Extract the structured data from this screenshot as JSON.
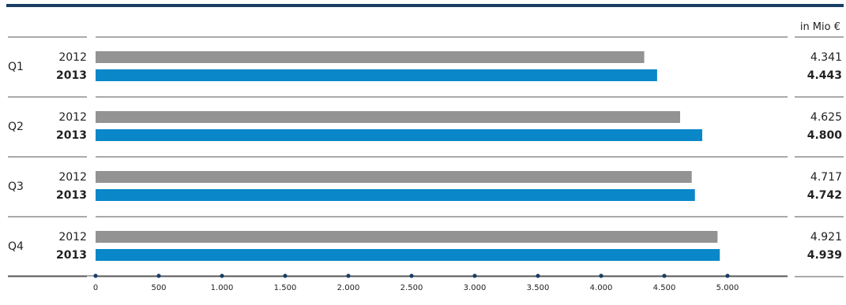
{
  "chart_data": {
    "type": "bar",
    "orientation": "horizontal",
    "unit": "in Mio €",
    "categories": [
      "Q1",
      "Q2",
      "Q3",
      "Q4"
    ],
    "series": [
      {
        "name": "2012",
        "values": [
          4341,
          4625,
          4717,
          4921
        ],
        "labels": [
          "4.341",
          "4.625",
          "4.717",
          "4.921"
        ],
        "color": "#939393",
        "bold": false
      },
      {
        "name": "2013",
        "values": [
          4443,
          4800,
          4742,
          4939
        ],
        "labels": [
          "4.443",
          "4.800",
          "4.742",
          "4.939"
        ],
        "color": "#0a87c9",
        "bold": true
      }
    ],
    "xlim": [
      0,
      5000
    ],
    "ticks": [
      0,
      500,
      1000,
      1500,
      2000,
      2500,
      3000,
      3500,
      4000,
      4500,
      5000
    ],
    "tick_labels": [
      "0",
      "500",
      "1.000",
      "1.500",
      "2.000",
      "2.500",
      "3.000",
      "3.500",
      "4.000",
      "4.500",
      "5.000"
    ],
    "grid": false,
    "title": "",
    "xlabel": "",
    "ylabel": ""
  },
  "colors": {
    "top_rule": "#1a3d64",
    "separator": "#555555",
    "axis": "#555555",
    "tick_dot": "#1a3d64"
  }
}
